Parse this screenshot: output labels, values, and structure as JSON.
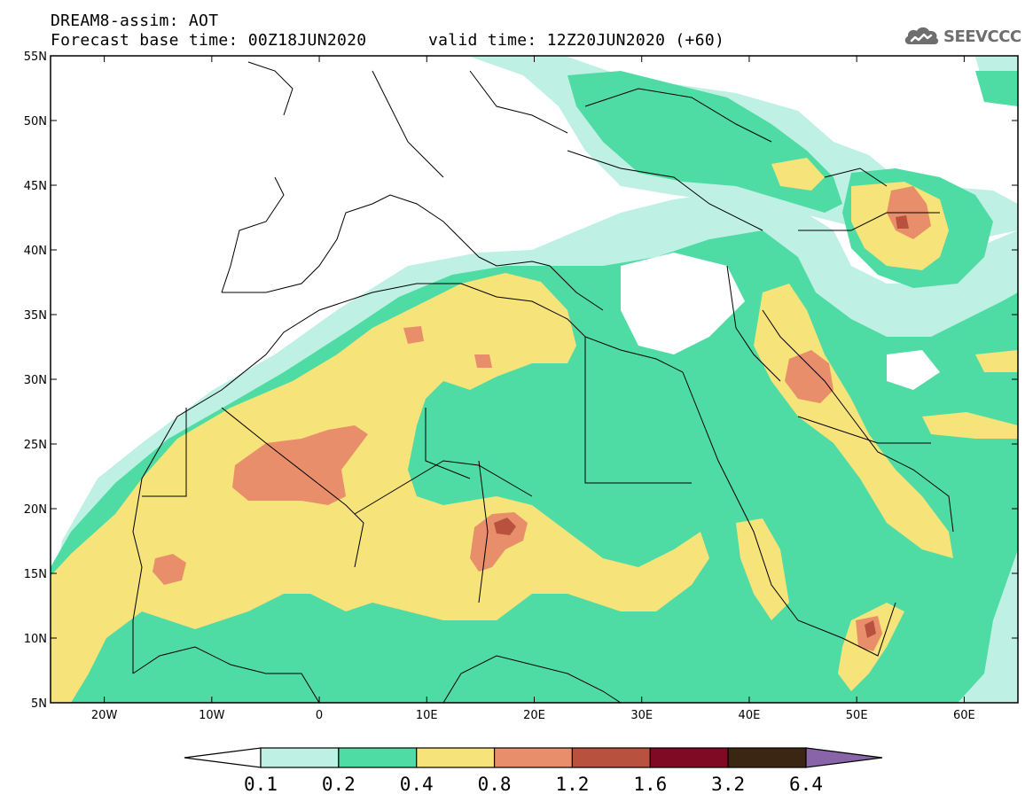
{
  "header": {
    "title": "DREAM8-assim: AOT",
    "forecast_base": "Forecast base time: 00Z18JUN2020",
    "valid_time": "valid time: 12Z20JUN2020 (+60)",
    "logo_text": "SEEVCCC"
  },
  "map": {
    "lon_range": [
      -25,
      65
    ],
    "lat_range": [
      5,
      55
    ],
    "lon_ticks": [
      {
        "value": -20,
        "label": "20W"
      },
      {
        "value": -10,
        "label": "10W"
      },
      {
        "value": 0,
        "label": "0"
      },
      {
        "value": 10,
        "label": "10E"
      },
      {
        "value": 20,
        "label": "20E"
      },
      {
        "value": 30,
        "label": "30E"
      },
      {
        "value": 40,
        "label": "40E"
      },
      {
        "value": 50,
        "label": "50E"
      },
      {
        "value": 60,
        "label": "60E"
      }
    ],
    "lat_ticks": [
      {
        "value": 55,
        "label": "55N"
      },
      {
        "value": 50,
        "label": "50N"
      },
      {
        "value": 45,
        "label": "45N"
      },
      {
        "value": 40,
        "label": "40N"
      },
      {
        "value": 35,
        "label": "35N"
      },
      {
        "value": 30,
        "label": "30N"
      },
      {
        "value": 25,
        "label": "25N"
      },
      {
        "value": 20,
        "label": "20N"
      },
      {
        "value": 15,
        "label": "15N"
      },
      {
        "value": 10,
        "label": "10N"
      },
      {
        "value": 5,
        "label": "5N"
      }
    ]
  },
  "colorbar": {
    "colors": [
      "#ffffff",
      "#bff0e4",
      "#4fdca4",
      "#f6e37a",
      "#e88e6b",
      "#b8523e",
      "#7e0a24",
      "#3b2614",
      "#8a64a8"
    ],
    "labels": [
      "0.1",
      "0.2",
      "0.4",
      "0.8",
      "1.2",
      "1.6",
      "3.2",
      "6.4"
    ]
  }
}
